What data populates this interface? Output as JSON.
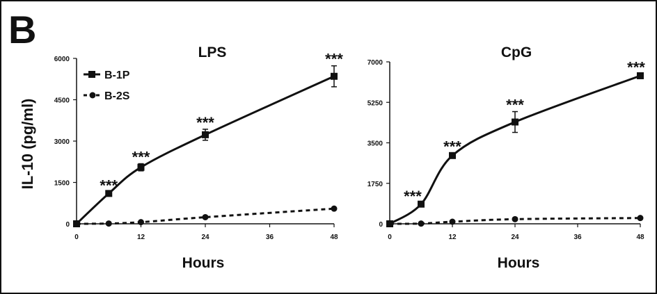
{
  "figure": {
    "panel_label": "B",
    "ylabel": "IL-10 (pg/ml)"
  },
  "legend": [
    {
      "name": "B-1P",
      "style": "solid",
      "marker": "square"
    },
    {
      "name": "B-2S",
      "style": "dashed",
      "marker": "circle"
    }
  ],
  "chart_data": [
    {
      "type": "line",
      "title": "LPS",
      "xlabel": "Hours",
      "ylabel": "IL-10 (pg/ml)",
      "xlim": [
        0,
        48
      ],
      "ylim": [
        0,
        6000
      ],
      "xticks": [
        "0",
        "12",
        "24",
        "36",
        "48"
      ],
      "yticks": [
        "0",
        "1500",
        "3000",
        "4500",
        "6000"
      ],
      "legend_position": "top-left",
      "grid": false,
      "series": [
        {
          "name": "B-1P",
          "line": "solid",
          "marker": "square",
          "x": [
            0,
            6,
            12,
            24,
            48
          ],
          "y": [
            0,
            1100,
            2050,
            3230,
            5350
          ],
          "error": [
            0,
            50,
            130,
            200,
            380
          ]
        },
        {
          "name": "B-2S",
          "line": "dashed",
          "marker": "circle",
          "x": [
            0,
            6,
            12,
            24,
            48
          ],
          "y": [
            0,
            10,
            60,
            240,
            550
          ],
          "error": [
            0,
            0,
            0,
            0,
            0
          ]
        }
      ],
      "annotations": [
        {
          "text": "***",
          "x": 6
        },
        {
          "text": "***",
          "x": 12
        },
        {
          "text": "***",
          "x": 24
        },
        {
          "text": "***",
          "x": 48
        }
      ]
    },
    {
      "type": "line",
      "title": "CpG",
      "xlabel": "Hours",
      "xlim": [
        0,
        48
      ],
      "ylim": [
        0,
        7000
      ],
      "xticks": [
        "0",
        "12",
        "24",
        "36",
        "48"
      ],
      "yticks": [
        "0",
        "1750",
        "3500",
        "5250",
        "7000"
      ],
      "grid": false,
      "series": [
        {
          "name": "B-1P",
          "line": "solid",
          "marker": "square",
          "x": [
            0,
            6,
            12,
            24,
            48
          ],
          "y": [
            0,
            850,
            2950,
            4400,
            6400
          ],
          "error": [
            0,
            50,
            100,
            450,
            80
          ]
        },
        {
          "name": "B-2S",
          "line": "dashed",
          "marker": "circle",
          "x": [
            0,
            6,
            12,
            24,
            48
          ],
          "y": [
            0,
            10,
            90,
            200,
            250
          ],
          "error": [
            0,
            0,
            0,
            0,
            0
          ]
        }
      ],
      "annotations": [
        {
          "text": "***",
          "x": 6
        },
        {
          "text": "***",
          "x": 12
        },
        {
          "text": "***",
          "x": 24
        },
        {
          "text": "***",
          "x": 48
        }
      ]
    }
  ]
}
